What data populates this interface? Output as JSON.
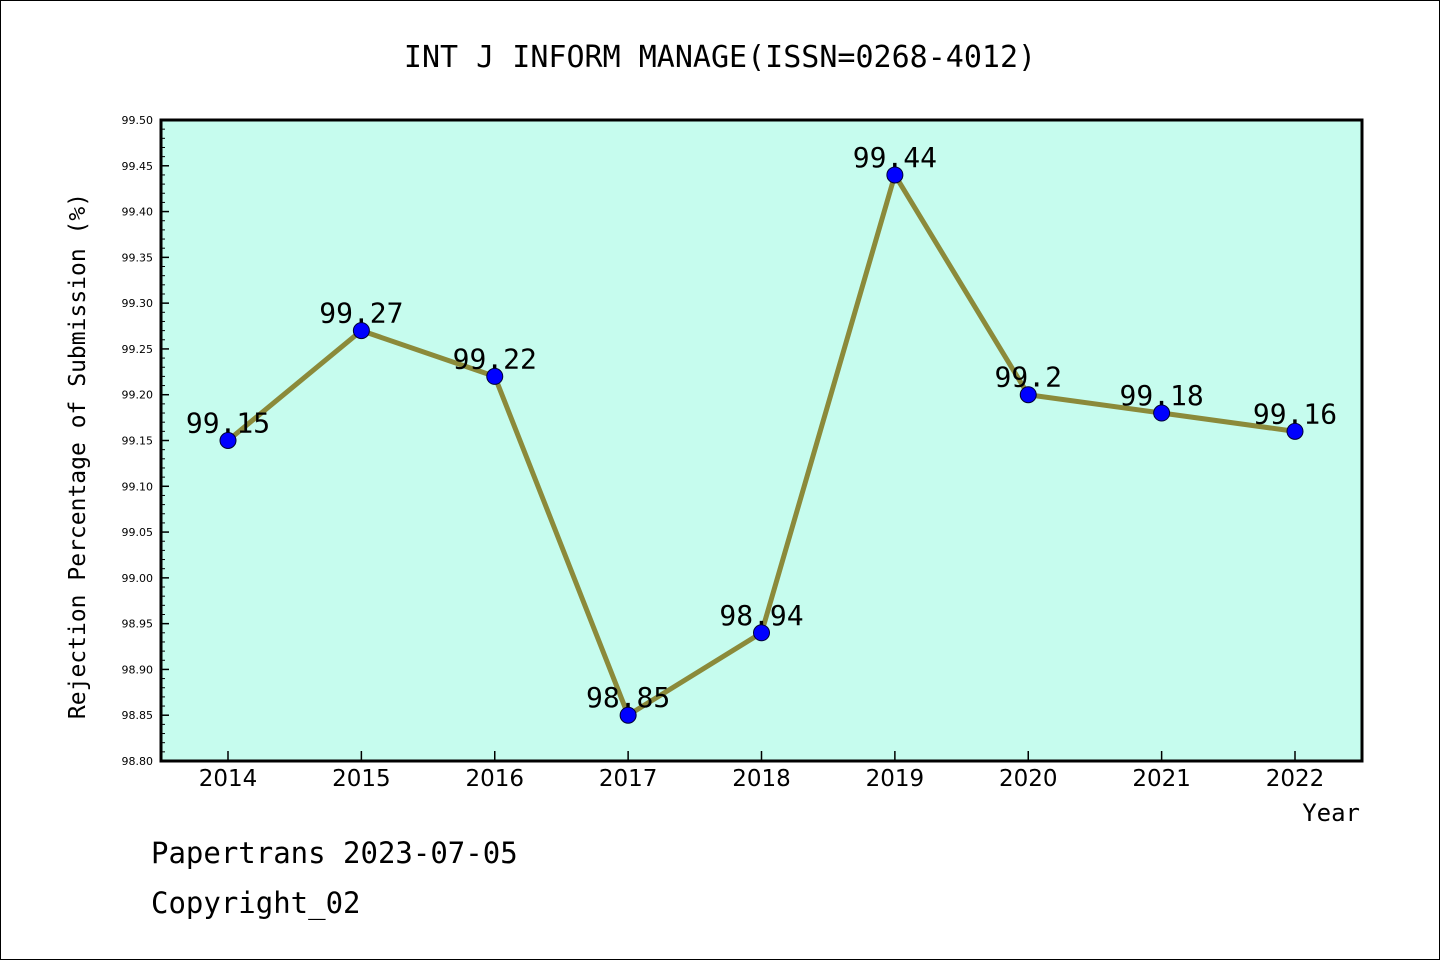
{
  "chart_data": {
    "type": "line",
    "title": "INT J INFORM MANAGE(ISSN=0268-4012)",
    "xlabel": "Year",
    "ylabel": "Rejection Percentage of Submission (%)",
    "categories": [
      "2014",
      "2015",
      "2016",
      "2017",
      "2018",
      "2019",
      "2020",
      "2021",
      "2022"
    ],
    "series": [
      {
        "values": [
          99.15,
          99.27,
          99.22,
          98.85,
          98.94,
          99.44,
          99.2,
          99.18,
          99.16
        ]
      }
    ],
    "data_labels": [
      "99.15",
      "99.27",
      "99.22",
      "98.85",
      "98.94",
      "99.44",
      "99.2",
      "99.18",
      "99.16"
    ],
    "ylim": [
      98.8,
      99.5
    ],
    "yticks": [
      "98.80",
      "98.85",
      "98.90",
      "98.95",
      "99.00",
      "99.05",
      "99.10",
      "99.15",
      "99.20",
      "99.25",
      "99.30",
      "99.35",
      "99.40",
      "99.45",
      "99.50"
    ],
    "grid": false,
    "legend": "none",
    "colors": {
      "plot_background": "#c6fcee",
      "line": "#8b8a3a",
      "marker": "#0000ff",
      "axes": "#000000"
    }
  },
  "footer": {
    "line1": "Papertrans 2023-07-05",
    "line2": "Copyright_02"
  }
}
